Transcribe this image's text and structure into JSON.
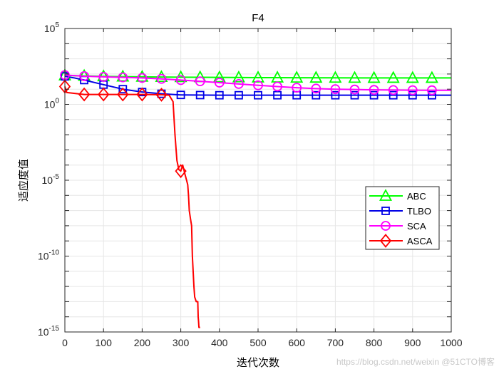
{
  "chart_data": {
    "type": "line",
    "title": "F4",
    "xlabel": "迭代次数",
    "ylabel": "适应度值",
    "xscale": "linear",
    "yscale": "log",
    "xlim": [
      0,
      1000
    ],
    "ylim": [
      1e-15,
      100000.0
    ],
    "xticks": [
      0,
      100,
      200,
      300,
      400,
      500,
      600,
      700,
      800,
      900,
      1000
    ],
    "yticks": [
      {
        "base": "10",
        "exp": "-15",
        "value": 1e-15
      },
      {
        "base": "10",
        "exp": "-10",
        "value": 1e-10
      },
      {
        "base": "10",
        "exp": "-5",
        "value": 1e-05
      },
      {
        "base": "10",
        "exp": "0",
        "value": 1
      },
      {
        "base": "10",
        "exp": "5",
        "value": 100000.0
      }
    ],
    "grid": true,
    "legend_position": "right",
    "series": [
      {
        "name": "ABC",
        "color": "#00ff00",
        "marker": "triangle",
        "points": [
          [
            0,
            80
          ],
          [
            100,
            70
          ],
          [
            200,
            65
          ],
          [
            300,
            62
          ],
          [
            400,
            60
          ],
          [
            500,
            58
          ],
          [
            600,
            57
          ],
          [
            700,
            56
          ],
          [
            800,
            55
          ],
          [
            900,
            55
          ],
          [
            1000,
            55
          ]
        ],
        "markers_x": [
          0,
          50,
          100,
          150,
          200,
          250,
          300,
          350,
          400,
          450,
          500,
          550,
          600,
          650,
          700,
          750,
          800,
          850,
          900,
          950
        ]
      },
      {
        "name": "TLBO",
        "color": "#0000e6",
        "marker": "square",
        "points": [
          [
            0,
            70
          ],
          [
            25,
            55
          ],
          [
            50,
            40
          ],
          [
            100,
            20
          ],
          [
            150,
            10
          ],
          [
            200,
            6.5
          ],
          [
            250,
            5
          ],
          [
            280,
            4.5
          ],
          [
            300,
            4.2
          ],
          [
            400,
            4
          ],
          [
            500,
            4
          ],
          [
            600,
            4
          ],
          [
            700,
            4
          ],
          [
            800,
            4
          ],
          [
            900,
            4
          ],
          [
            1000,
            4
          ]
        ],
        "markers_x": [
          0,
          50,
          100,
          150,
          200,
          250,
          300,
          350,
          400,
          450,
          500,
          550,
          600,
          650,
          700,
          750,
          800,
          850,
          900,
          950
        ]
      },
      {
        "name": "SCA",
        "color": "#ff00ff",
        "marker": "circle",
        "points": [
          [
            0,
            85
          ],
          [
            50,
            72
          ],
          [
            100,
            65
          ],
          [
            150,
            60
          ],
          [
            200,
            55
          ],
          [
            250,
            48
          ],
          [
            300,
            40
          ],
          [
            350,
            33
          ],
          [
            400,
            27
          ],
          [
            450,
            22
          ],
          [
            500,
            18
          ],
          [
            550,
            15
          ],
          [
            600,
            12.5
          ],
          [
            650,
            11
          ],
          [
            700,
            10
          ],
          [
            750,
            9.5
          ],
          [
            800,
            9
          ],
          [
            850,
            8.8
          ],
          [
            900,
            8.6
          ],
          [
            950,
            8.5
          ],
          [
            1000,
            8.4
          ]
        ],
        "markers_x": [
          0,
          50,
          100,
          150,
          200,
          250,
          300,
          350,
          400,
          450,
          500,
          550,
          600,
          650,
          700,
          750,
          800,
          850,
          900,
          950
        ]
      },
      {
        "name": "ASCA",
        "color": "#ff0000",
        "marker": "diamond",
        "points": [
          [
            0,
            15
          ],
          [
            5,
            6
          ],
          [
            50,
            4.5
          ],
          [
            100,
            4.5
          ],
          [
            150,
            4.5
          ],
          [
            200,
            4.5
          ],
          [
            250,
            4.3
          ],
          [
            270,
            4
          ],
          [
            280,
            1.5
          ],
          [
            285,
            0.01
          ],
          [
            290,
            0.0002
          ],
          [
            295,
            5e-05
          ],
          [
            300,
            4e-05
          ],
          [
            305,
            0.0001
          ],
          [
            310,
            3e-05
          ],
          [
            315,
            1e-05
          ],
          [
            318,
            5e-06
          ],
          [
            320,
            1e-06
          ],
          [
            322,
            1e-07
          ],
          [
            325,
            3e-08
          ],
          [
            328,
            1e-08
          ],
          [
            330,
            1e-10
          ],
          [
            332,
            1e-11
          ],
          [
            334,
            1e-12
          ],
          [
            336,
            2e-13
          ],
          [
            340,
            1e-13
          ],
          [
            344,
            1e-13
          ],
          [
            345,
            1e-14
          ],
          [
            346,
            5e-15
          ],
          [
            347,
            2e-15
          ],
          [
            350,
            2e-15
          ]
        ],
        "markers_x": [
          0,
          50,
          100,
          150,
          200,
          250,
          300
        ]
      }
    ]
  },
  "watermark": "https://blog.csdn.net/weixin @51CTO博客"
}
